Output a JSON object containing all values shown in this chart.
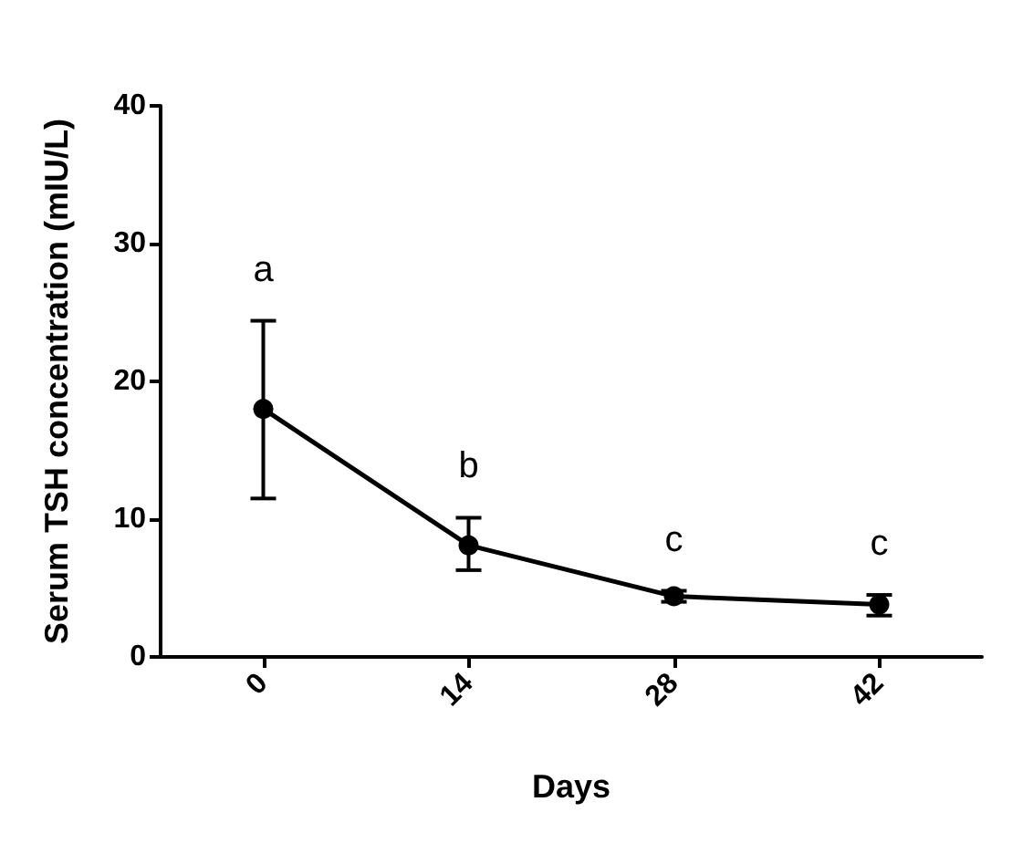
{
  "chart_data": {
    "type": "line",
    "xlabel": "Days",
    "ylabel": "Serum TSH concentration (mIU/L)",
    "categories": [
      "0",
      "14",
      "28",
      "42"
    ],
    "series": [
      {
        "color": "#000000",
        "values": [
          18,
          8.1,
          4.4,
          3.8
        ],
        "errors": [
          [
            11.5,
            24.4
          ],
          [
            6.3,
            10.1
          ],
          [
            4.0,
            4.8
          ],
          [
            3.0,
            4.5
          ]
        ]
      }
    ],
    "ylim": [
      0,
      40
    ],
    "yticks": [
      0,
      10,
      20,
      30,
      40
    ],
    "grid": false,
    "marker": "circle",
    "line_style": "solid",
    "annotations": [
      "a",
      "b",
      "c",
      "c"
    ]
  }
}
